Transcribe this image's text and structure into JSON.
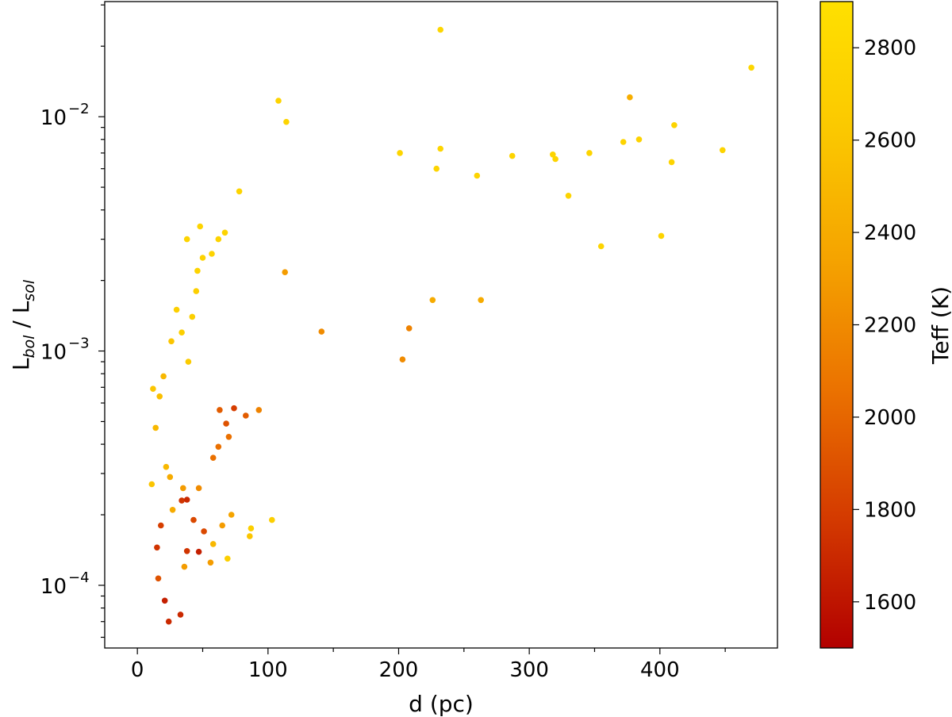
{
  "chart_data": {
    "type": "scatter",
    "title": "",
    "xlabel": "d (pc)",
    "ylabel": {
      "base": "L",
      "sub1": "bol",
      "sep": " / L",
      "sub2": "sol"
    },
    "x_range": [
      -25,
      490
    ],
    "y_range": [
      5.4e-05,
      0.031
    ],
    "y_scale": "log",
    "grid": false,
    "x_ticks": [
      {
        "value": 0,
        "label": "0"
      },
      {
        "value": 100,
        "label": "100"
      },
      {
        "value": 200,
        "label": "200"
      },
      {
        "value": 300,
        "label": "300"
      },
      {
        "value": 400,
        "label": "400"
      }
    ],
    "y_ticks": [
      {
        "value": 0.0001,
        "base": "10",
        "exp": "−4"
      },
      {
        "value": 0.001,
        "base": "10",
        "exp": "−3"
      },
      {
        "value": 0.01,
        "base": "10",
        "exp": "−2"
      }
    ],
    "colorbar": {
      "label": "Teff (K)",
      "range": [
        1500,
        2900
      ],
      "ticks": [
        1600,
        1800,
        2000,
        2200,
        2400,
        2600,
        2800
      ],
      "colors": [
        "#b20000",
        "#d43a00",
        "#eb7200",
        "#f5a300",
        "#fbc800",
        "#ffe000"
      ]
    },
    "marker_color_default": "#fcd200",
    "points": [
      [
        232,
        0.0235,
        2780
      ],
      [
        470,
        0.0162,
        2780
      ],
      [
        108,
        0.0117,
        2750
      ],
      [
        377,
        0.0121,
        2420
      ],
      [
        114,
        0.0095,
        2760
      ],
      [
        411,
        0.0092,
        2760
      ],
      [
        384,
        0.008,
        2740
      ],
      [
        232,
        0.0073,
        2770
      ],
      [
        201,
        0.007,
        2770
      ],
      [
        448,
        0.0072,
        2760
      ],
      [
        318,
        0.0069,
        2760
      ],
      [
        287,
        0.0068,
        2760
      ],
      [
        78,
        0.0048,
        2760
      ],
      [
        38,
        0.003,
        2760
      ],
      [
        48,
        0.0034,
        2760
      ],
      [
        409,
        0.0064,
        2760
      ],
      [
        401,
        0.0031,
        2760
      ],
      [
        355,
        0.0028,
        2760
      ],
      [
        330,
        0.0046,
        2760
      ],
      [
        320,
        0.0066,
        2760
      ],
      [
        372,
        0.0078,
        2760
      ],
      [
        346,
        0.007,
        2760
      ],
      [
        260,
        0.0056,
        2760
      ],
      [
        229,
        0.006,
        2760
      ],
      [
        24,
        7e-05,
        1700
      ],
      [
        33,
        7.5e-05,
        1700
      ],
      [
        21,
        8.6e-05,
        1650
      ],
      [
        16,
        0.000107,
        1900
      ],
      [
        36,
        0.00012,
        2300
      ],
      [
        15,
        0.000145,
        1750
      ],
      [
        38,
        0.00014,
        1750
      ],
      [
        47,
        0.000139,
        1650
      ],
      [
        18,
        0.00018,
        1800
      ],
      [
        34,
        0.00023,
        1750
      ],
      [
        38,
        0.000232,
        1700
      ],
      [
        43,
        0.00019,
        1850
      ],
      [
        51,
        0.00017,
        1850
      ],
      [
        56,
        0.000125,
        2300
      ],
      [
        27,
        0.00021,
        2400
      ],
      [
        11,
        0.00027,
        2600
      ],
      [
        22,
        0.00032,
        2500
      ],
      [
        35,
        0.00026,
        2300
      ],
      [
        47,
        0.00026,
        2200
      ],
      [
        65,
        0.00018,
        2300
      ],
      [
        72,
        0.0002,
        2350
      ],
      [
        87,
        0.000175,
        2700
      ],
      [
        103,
        0.00019,
        2700
      ],
      [
        58,
        0.00015,
        2500
      ],
      [
        69,
        0.00013,
        2700
      ],
      [
        86,
        0.000162,
        2600
      ],
      [
        25,
        0.00029,
        2400
      ],
      [
        63,
        0.00056,
        1950
      ],
      [
        68,
        0.00049,
        1900
      ],
      [
        74,
        0.00057,
        1800
      ],
      [
        83,
        0.00053,
        1950
      ],
      [
        62,
        0.00039,
        2050
      ],
      [
        70,
        0.00043,
        2050
      ],
      [
        58,
        0.00035,
        2050
      ],
      [
        93,
        0.00056,
        2150
      ],
      [
        208,
        0.00125,
        2150
      ],
      [
        203,
        0.00092,
        2200
      ],
      [
        141,
        0.00121,
        2200
      ],
      [
        113,
        0.00217,
        2300
      ],
      [
        226,
        0.00165,
        2400
      ],
      [
        263,
        0.00165,
        2400
      ],
      [
        14,
        0.00047,
        2500
      ],
      [
        12,
        0.00069,
        2600
      ],
      [
        20,
        0.00078,
        2500
      ],
      [
        17,
        0.00064,
        2550
      ],
      [
        26,
        0.0011,
        2600
      ],
      [
        30,
        0.0015,
        2700
      ],
      [
        34,
        0.0012,
        2700
      ],
      [
        39,
        0.0009,
        2650
      ],
      [
        42,
        0.0014,
        2700
      ],
      [
        45,
        0.0018,
        2700
      ],
      [
        46,
        0.0022,
        2750
      ],
      [
        50,
        0.0025,
        2750
      ],
      [
        57,
        0.0026,
        2750
      ],
      [
        62,
        0.003,
        2750
      ],
      [
        67,
        0.0032,
        2750
      ]
    ]
  }
}
